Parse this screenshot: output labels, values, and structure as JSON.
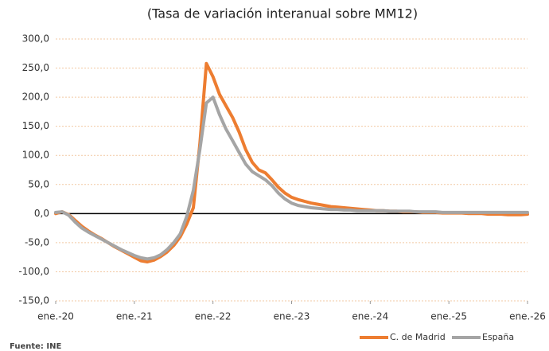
{
  "chart_data": {
    "type": "line",
    "subtitle": "(Tasa de variación interanual sobre MM12)",
    "source": "Fuente: INE",
    "x": [
      "2020-01",
      "2020-02",
      "2020-03",
      "2020-04",
      "2020-05",
      "2020-06",
      "2020-07",
      "2020-08",
      "2020-09",
      "2020-10",
      "2020-11",
      "2020-12",
      "2021-01",
      "2021-02",
      "2021-03",
      "2021-04",
      "2021-05",
      "2021-06",
      "2021-07",
      "2021-08",
      "2021-09",
      "2021-10",
      "2021-11",
      "2021-12",
      "2022-01",
      "2022-02",
      "2022-03",
      "2022-04",
      "2022-05",
      "2022-06",
      "2022-07",
      "2022-08",
      "2022-09",
      "2022-10",
      "2022-11",
      "2022-12",
      "2023-01",
      "2023-02",
      "2023-03",
      "2023-04",
      "2023-05",
      "2023-06",
      "2023-07",
      "2023-08",
      "2023-09",
      "2023-10",
      "2023-11",
      "2023-12",
      "2024-01",
      "2024-02",
      "2024-03",
      "2024-04",
      "2024-05",
      "2024-06",
      "2024-07",
      "2024-08",
      "2024-09",
      "2024-10",
      "2024-11",
      "2024-12",
      "2025-01",
      "2025-02",
      "2025-03",
      "2025-04",
      "2025-05",
      "2025-06",
      "2025-07",
      "2025-08",
      "2025-09",
      "2025-10",
      "2025-11",
      "2025-12",
      "2026-01"
    ],
    "series": [
      {
        "name": "C. de Madrid",
        "color": "#ed7d31",
        "values": [
          0,
          3,
          -2,
          -12,
          -22,
          -30,
          -37,
          -43,
          -50,
          -57,
          -63,
          -69,
          -75,
          -81,
          -83,
          -80,
          -74,
          -66,
          -55,
          -40,
          -18,
          10,
          120,
          258,
          235,
          205,
          185,
          165,
          140,
          110,
          88,
          75,
          70,
          58,
          45,
          35,
          28,
          24,
          21,
          18,
          16,
          14,
          12,
          11,
          10,
          9,
          8,
          7,
          6,
          5,
          5,
          4,
          4,
          3,
          3,
          3,
          2,
          2,
          2,
          1,
          1,
          1,
          1,
          0,
          0,
          0,
          -1,
          -1,
          -1,
          -2,
          -2,
          -2,
          -1
        ]
      },
      {
        "name": "España",
        "color": "#a5a5a5",
        "values": [
          2,
          3,
          -3,
          -15,
          -25,
          -32,
          -38,
          -44,
          -50,
          -56,
          -62,
          -67,
          -72,
          -76,
          -78,
          -76,
          -71,
          -62,
          -50,
          -35,
          -5,
          40,
          110,
          190,
          200,
          170,
          145,
          125,
          105,
          85,
          72,
          65,
          58,
          48,
          35,
          25,
          18,
          14,
          12,
          10,
          9,
          8,
          7,
          7,
          6,
          6,
          5,
          5,
          5,
          5,
          5,
          4,
          4,
          4,
          4,
          3,
          3,
          3,
          3,
          2,
          2,
          2,
          2,
          2,
          2,
          2,
          2,
          2,
          2,
          2,
          2,
          2,
          2
        ]
      }
    ],
    "xlim": [
      "2020-01",
      "2026-01"
    ],
    "xticks": [
      {
        "value": "2020-01",
        "label": "ene.-20"
      },
      {
        "value": "2021-01",
        "label": "ene.-21"
      },
      {
        "value": "2022-01",
        "label": "ene.-22"
      },
      {
        "value": "2023-01",
        "label": "ene.-23"
      },
      {
        "value": "2024-01",
        "label": "ene.-24"
      },
      {
        "value": "2025-01",
        "label": "ene.-25"
      },
      {
        "value": "2026-01",
        "label": "ene.-26"
      }
    ],
    "ylim": [
      -150,
      300
    ],
    "yticks": [
      {
        "value": -150,
        "label": "-150,0"
      },
      {
        "value": -100,
        "label": "-100,0"
      },
      {
        "value": -50,
        "label": "-50,0"
      },
      {
        "value": 0,
        "label": "0,0"
      },
      {
        "value": 50,
        "label": "50,0"
      },
      {
        "value": 100,
        "label": "100,0"
      },
      {
        "value": 150,
        "label": "150,0"
      },
      {
        "value": 200,
        "label": "200,0"
      },
      {
        "value": 250,
        "label": "250,0"
      },
      {
        "value": 300,
        "label": "300,0"
      }
    ],
    "grid": true
  }
}
